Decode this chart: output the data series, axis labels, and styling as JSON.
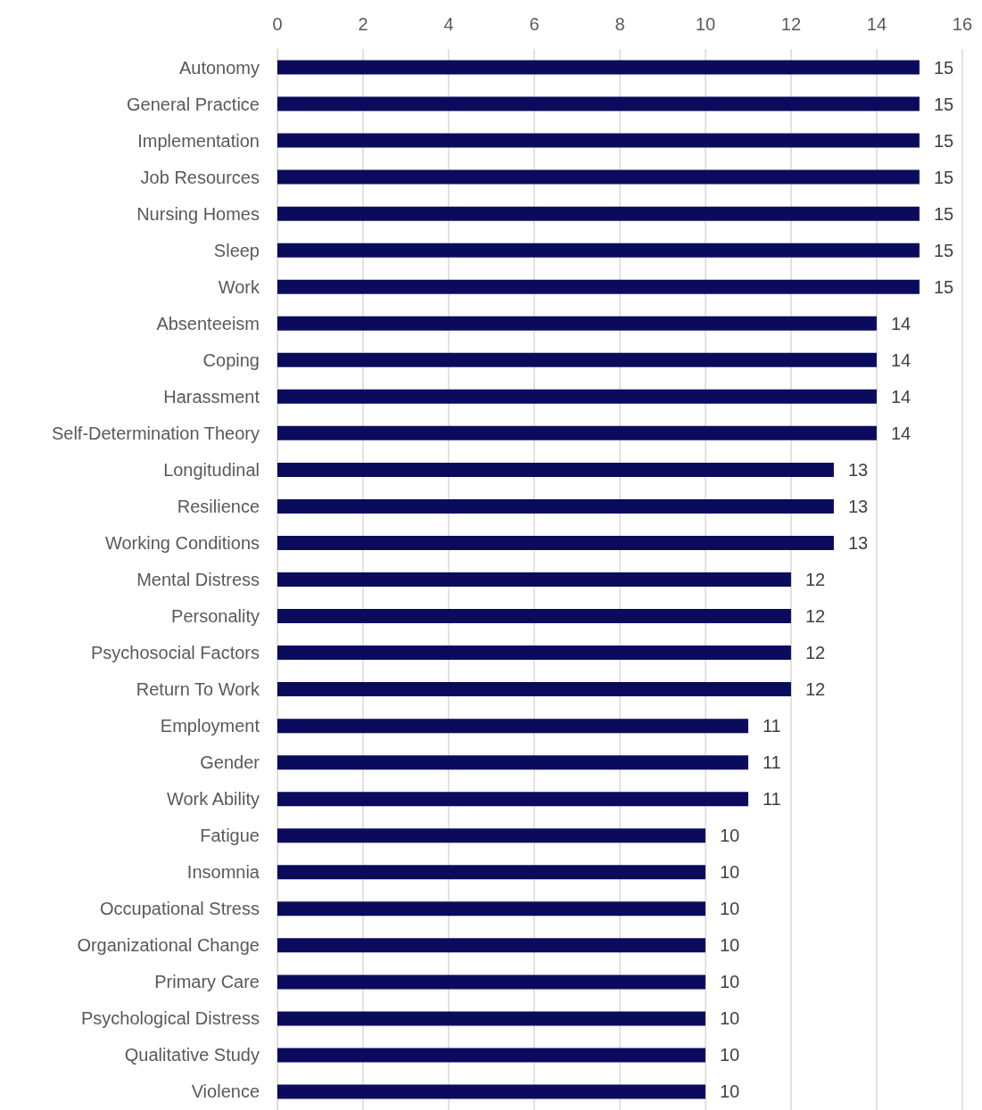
{
  "chart_data": {
    "type": "bar",
    "orientation": "horizontal",
    "categories": [
      "Autonomy",
      "General Practice",
      "Implementation",
      "Job Resources",
      "Nursing Homes",
      "Sleep",
      "Work",
      "Absenteeism",
      "Coping",
      "Harassment",
      "Self-Determination Theory",
      "Longitudinal",
      "Resilience",
      "Working Conditions",
      "Mental Distress",
      "Personality",
      "Psychosocial Factors",
      "Return To Work",
      "Employment",
      "Gender",
      "Work Ability",
      "Fatigue",
      "Insomnia",
      "Occupational Stress",
      "Organizational Change",
      "Primary Care",
      "Psychological Distress",
      "Qualitative Study",
      "Violence"
    ],
    "values": [
      15,
      15,
      15,
      15,
      15,
      15,
      15,
      14,
      14,
      14,
      14,
      13,
      13,
      13,
      12,
      12,
      12,
      12,
      11,
      11,
      11,
      10,
      10,
      10,
      10,
      10,
      10,
      10,
      10
    ],
    "color": "#0b0b5e",
    "xlim": [
      0,
      16
    ],
    "xticks": [
      0,
      2,
      4,
      6,
      8,
      10,
      12,
      14,
      16
    ],
    "grid": "x",
    "data_labels": true
  }
}
